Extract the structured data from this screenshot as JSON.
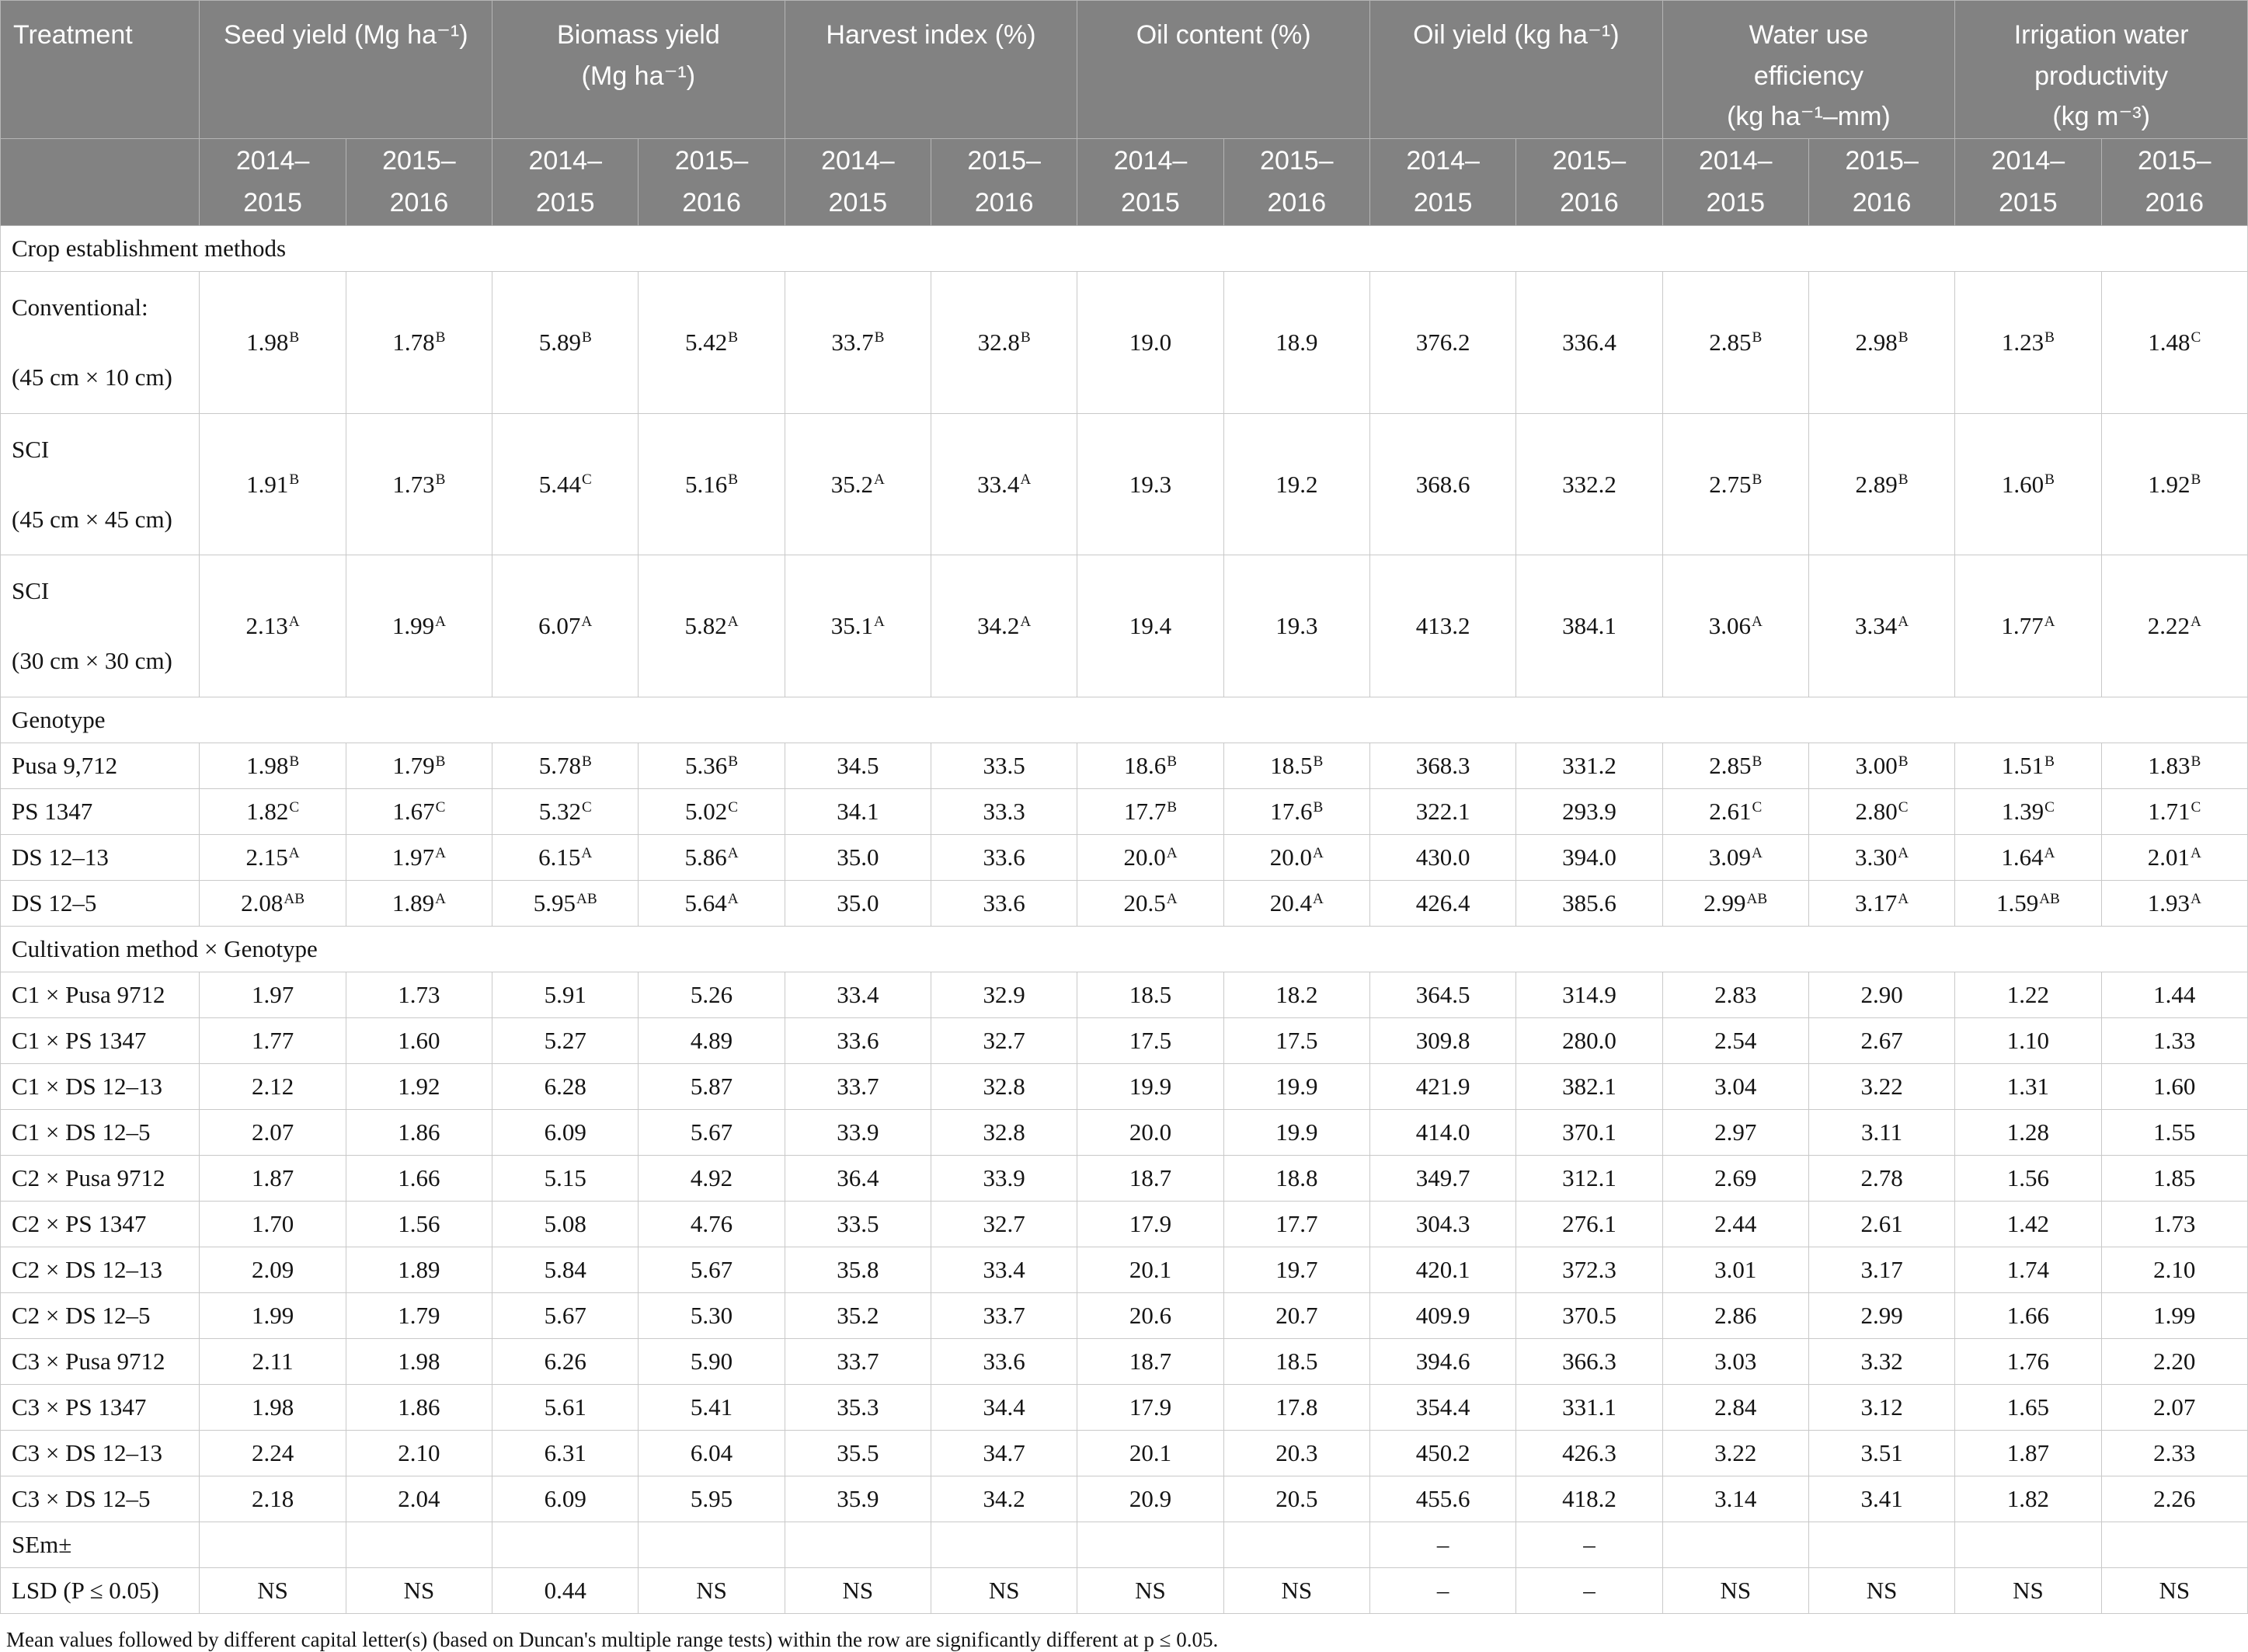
{
  "colors": {
    "header_bg": "#828282",
    "header_text": "#ffffff",
    "body_text": "#141414",
    "border": "#c9c9c9"
  },
  "header": {
    "treatment_label": "Treatment",
    "groups": [
      {
        "label": "Seed yield (Mg ha⁻¹)"
      },
      {
        "label": "Biomass yield\n(Mg ha⁻¹)"
      },
      {
        "label": "Harvest index (%)"
      },
      {
        "label": "Oil content (%)"
      },
      {
        "label": "Oil yield (kg ha⁻¹)"
      },
      {
        "label": "Water use\nefficiency\n(kg ha⁻¹–mm)"
      },
      {
        "label": "Irrigation water\nproductivity\n(kg m⁻³)"
      }
    ],
    "year_labels": [
      "2014–\n2015",
      "2015–\n2016"
    ]
  },
  "rows": [
    {
      "type": "section",
      "label": "Crop establishment methods"
    },
    {
      "type": "data",
      "tall": true,
      "label": "Conventional:\n(45 cm × 10 cm)",
      "cells": [
        "1.98^B",
        "1.78^B",
        "5.89^B",
        "5.42^B",
        "33.7^B",
        "32.8^B",
        "19.0",
        "18.9",
        "376.2",
        "336.4",
        "2.85^B",
        "2.98^B",
        "1.23^B",
        "1.48^C"
      ]
    },
    {
      "type": "data",
      "tall": true,
      "label": "SCI\n(45 cm × 45 cm)",
      "cells": [
        "1.91^B",
        "1.73^B",
        "5.44^C",
        "5.16^B",
        "35.2^A",
        "33.4^A",
        "19.3",
        "19.2",
        "368.6",
        "332.2",
        "2.75^B",
        "2.89^B",
        "1.60^B",
        "1.92^B"
      ]
    },
    {
      "type": "data",
      "tall": true,
      "label": "SCI\n(30 cm × 30 cm)",
      "cells": [
        "2.13^A",
        "1.99^A",
        "6.07^A",
        "5.82^A",
        "35.1^A",
        "34.2^A",
        "19.4",
        "19.3",
        "413.2",
        "384.1",
        "3.06^A",
        "3.34^A",
        "1.77^A",
        "2.22^A"
      ]
    },
    {
      "type": "section",
      "label": "Genotype"
    },
    {
      "type": "data",
      "label": "Pusa 9,712",
      "cells": [
        "1.98^B",
        "1.79^B",
        "5.78^B",
        "5.36^B",
        "34.5",
        "33.5",
        "18.6^B",
        "18.5^B",
        "368.3",
        "331.2",
        "2.85^B",
        "3.00^B",
        "1.51^B",
        "1.83^B"
      ]
    },
    {
      "type": "data",
      "label": "PS 1347",
      "cells": [
        "1.82^C",
        "1.67^C",
        "5.32^C",
        "5.02^C",
        "34.1",
        "33.3",
        "17.7^B",
        "17.6^B",
        "322.1",
        "293.9",
        "2.61^C",
        "2.80^C",
        "1.39^C",
        "1.71^C"
      ]
    },
    {
      "type": "data",
      "label": "DS 12–13",
      "cells": [
        "2.15^A",
        "1.97^A",
        "6.15^A",
        "5.86^A",
        "35.0",
        "33.6",
        "20.0^A",
        "20.0^A",
        "430.0",
        "394.0",
        "3.09^A",
        "3.30^A",
        "1.64^A",
        "2.01^A"
      ]
    },
    {
      "type": "data",
      "label": "DS 12–5",
      "cells": [
        "2.08^AB",
        "1.89^A",
        "5.95^AB",
        "5.64^A",
        "35.0",
        "33.6",
        "20.5^A",
        "20.4^A",
        "426.4",
        "385.6",
        "2.99^AB",
        "3.17^A",
        "1.59^AB",
        "1.93^A"
      ]
    },
    {
      "type": "section",
      "label": "Cultivation method × Genotype"
    },
    {
      "type": "data",
      "label": "C1 × Pusa 9712",
      "cells": [
        "1.97",
        "1.73",
        "5.91",
        "5.26",
        "33.4",
        "32.9",
        "18.5",
        "18.2",
        "364.5",
        "314.9",
        "2.83",
        "2.90",
        "1.22",
        "1.44"
      ]
    },
    {
      "type": "data",
      "label": "C1 × PS 1347",
      "cells": [
        "1.77",
        "1.60",
        "5.27",
        "4.89",
        "33.6",
        "32.7",
        "17.5",
        "17.5",
        "309.8",
        "280.0",
        "2.54",
        "2.67",
        "1.10",
        "1.33"
      ]
    },
    {
      "type": "data",
      "label": "C1 × DS 12–13",
      "cells": [
        "2.12",
        "1.92",
        "6.28",
        "5.87",
        "33.7",
        "32.8",
        "19.9",
        "19.9",
        "421.9",
        "382.1",
        "3.04",
        "3.22",
        "1.31",
        "1.60"
      ]
    },
    {
      "type": "data",
      "label": "C1 × DS 12–5",
      "cells": [
        "2.07",
        "1.86",
        "6.09",
        "5.67",
        "33.9",
        "32.8",
        "20.0",
        "19.9",
        "414.0",
        "370.1",
        "2.97",
        "3.11",
        "1.28",
        "1.55"
      ]
    },
    {
      "type": "data",
      "label": "C2 × Pusa 9712",
      "cells": [
        "1.87",
        "1.66",
        "5.15",
        "4.92",
        "36.4",
        "33.9",
        "18.7",
        "18.8",
        "349.7",
        "312.1",
        "2.69",
        "2.78",
        "1.56",
        "1.85"
      ]
    },
    {
      "type": "data",
      "label": "C2 × PS 1347",
      "cells": [
        "1.70",
        "1.56",
        "5.08",
        "4.76",
        "33.5",
        "32.7",
        "17.9",
        "17.7",
        "304.3",
        "276.1",
        "2.44",
        "2.61",
        "1.42",
        "1.73"
      ]
    },
    {
      "type": "data",
      "label": "C2 × DS 12–13",
      "cells": [
        "2.09",
        "1.89",
        "5.84",
        "5.67",
        "35.8",
        "33.4",
        "20.1",
        "19.7",
        "420.1",
        "372.3",
        "3.01",
        "3.17",
        "1.74",
        "2.10"
      ]
    },
    {
      "type": "data",
      "label": "C2 × DS 12–5",
      "cells": [
        "1.99",
        "1.79",
        "5.67",
        "5.30",
        "35.2",
        "33.7",
        "20.6",
        "20.7",
        "409.9",
        "370.5",
        "2.86",
        "2.99",
        "1.66",
        "1.99"
      ]
    },
    {
      "type": "data",
      "label": "C3 × Pusa 9712",
      "cells": [
        "2.11",
        "1.98",
        "6.26",
        "5.90",
        "33.7",
        "33.6",
        "18.7",
        "18.5",
        "394.6",
        "366.3",
        "3.03",
        "3.32",
        "1.76",
        "2.20"
      ]
    },
    {
      "type": "data",
      "label": "C3 × PS 1347",
      "cells": [
        "1.98",
        "1.86",
        "5.61",
        "5.41",
        "35.3",
        "34.4",
        "17.9",
        "17.8",
        "354.4",
        "331.1",
        "2.84",
        "3.12",
        "1.65",
        "2.07"
      ]
    },
    {
      "type": "data",
      "label": "C3 × DS 12–13",
      "cells": [
        "2.24",
        "2.10",
        "6.31",
        "6.04",
        "35.5",
        "34.7",
        "20.1",
        "20.3",
        "450.2",
        "426.3",
        "3.22",
        "3.51",
        "1.87",
        "2.33"
      ]
    },
    {
      "type": "data",
      "label": "C3 × DS 12–5",
      "cells": [
        "2.18",
        "2.04",
        "6.09",
        "5.95",
        "35.9",
        "34.2",
        "20.9",
        "20.5",
        "455.6",
        "418.2",
        "3.14",
        "3.41",
        "1.82",
        "2.26"
      ]
    },
    {
      "type": "data",
      "label": "SEm±",
      "cells": [
        "",
        "",
        "",
        "",
        "",
        "",
        "",
        "",
        "–",
        "–",
        "",
        "",
        "",
        ""
      ]
    },
    {
      "type": "data",
      "label": "LSD (P ≤ 0.05)",
      "cells": [
        "NS",
        "NS",
        "0.44",
        "NS",
        "NS",
        "NS",
        "NS",
        "NS",
        "–",
        "–",
        "NS",
        "NS",
        "NS",
        "NS"
      ]
    }
  ],
  "footnote": "Mean values followed by different capital letter(s) (based on Duncan's multiple range tests) within the row are significantly different at p ≤ 0.05."
}
